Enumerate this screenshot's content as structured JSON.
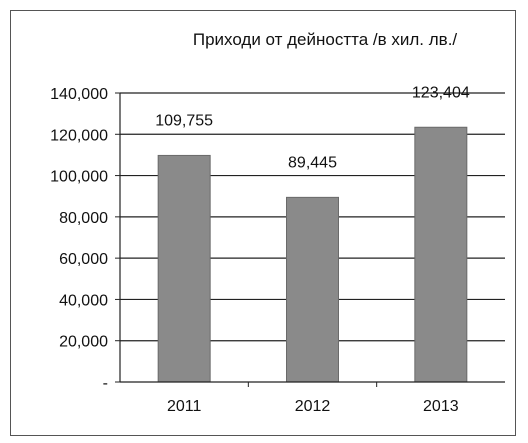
{
  "chart_data": {
    "type": "bar",
    "title": "Приходи от дейността /в хил. лв./",
    "categories": [
      "2011",
      "2012",
      "2013"
    ],
    "values": [
      109755,
      89445,
      123404
    ],
    "data_labels": [
      "109,755",
      "89,445",
      "123,404"
    ],
    "y_ticks": [
      0,
      20000,
      40000,
      60000,
      80000,
      100000,
      120000,
      140000
    ],
    "y_tick_labels": [
      "-",
      "20,000",
      "40,000",
      "60,000",
      "80,000",
      "100,000",
      "120,000",
      "140,000"
    ],
    "ylim": [
      0,
      140000
    ],
    "grid": true,
    "legend": "none",
    "bar_color": "#8a8a8a"
  }
}
